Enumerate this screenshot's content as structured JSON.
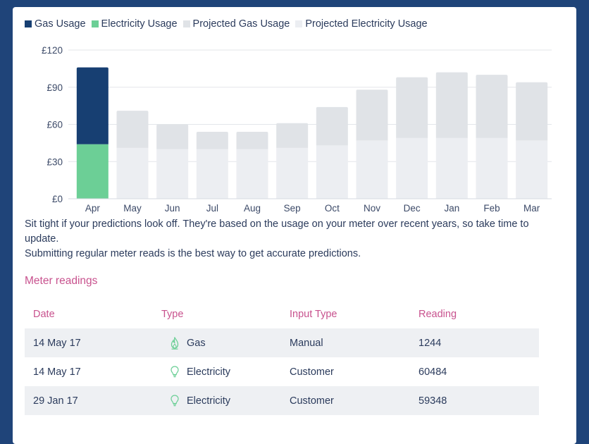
{
  "legend": [
    {
      "label": "Gas Usage",
      "color": "#173f72"
    },
    {
      "label": "Electricity Usage",
      "color": "#6ccf96"
    },
    {
      "label": "Projected Gas Usage",
      "color": "#e0e3e7"
    },
    {
      "label": "Projected Electricity Usage",
      "color": "#eceef2"
    }
  ],
  "chart_data": {
    "type": "bar",
    "stacked": true,
    "categories": [
      "Apr",
      "May",
      "Jun",
      "Jul",
      "Aug",
      "Sep",
      "Oct",
      "Nov",
      "Dec",
      "Jan",
      "Feb",
      "Mar"
    ],
    "series": [
      {
        "name": "Electricity Usage",
        "color": "#6ccf96",
        "values": [
          44,
          0,
          0,
          0,
          0,
          0,
          0,
          0,
          0,
          0,
          0,
          0
        ]
      },
      {
        "name": "Gas Usage",
        "color": "#173f72",
        "values": [
          62,
          0,
          0,
          0,
          0,
          0,
          0,
          0,
          0,
          0,
          0,
          0
        ]
      },
      {
        "name": "Projected Electricity Usage",
        "color": "#eceef2",
        "values": [
          0,
          41,
          40,
          40,
          40,
          41,
          43,
          47,
          49,
          49,
          49,
          47
        ]
      },
      {
        "name": "Projected Gas Usage",
        "color": "#e0e3e7",
        "values": [
          0,
          30,
          20,
          14,
          14,
          20,
          31,
          41,
          49,
          53,
          51,
          47
        ]
      }
    ],
    "y_ticks": [
      "£0",
      "£30",
      "£60",
      "£90",
      "£120"
    ],
    "y_tick_values": [
      0,
      30,
      60,
      90,
      120
    ],
    "ylim": [
      0,
      120
    ],
    "grid": true
  },
  "note": {
    "line1": "Sit tight if your predictions look off. They're based on the usage on your meter over recent years, so take time to update.",
    "line2": "Submitting regular meter reads is the best way to get accurate predictions."
  },
  "meter": {
    "title": "Meter readings",
    "headers": {
      "date": "Date",
      "type": "Type",
      "input_type": "Input Type",
      "reading": "Reading"
    },
    "rows": [
      {
        "date": "14 May 17",
        "type": "Gas",
        "icon": "flame-icon",
        "input_type": "Manual",
        "reading": "1244"
      },
      {
        "date": "14 May 17",
        "type": "Electricity",
        "icon": "lightbulb-icon",
        "input_type": "Customer",
        "reading": "60484"
      },
      {
        "date": "29 Jan 17",
        "type": "Electricity",
        "icon": "lightbulb-icon",
        "input_type": "Customer",
        "reading": "59348"
      }
    ]
  }
}
